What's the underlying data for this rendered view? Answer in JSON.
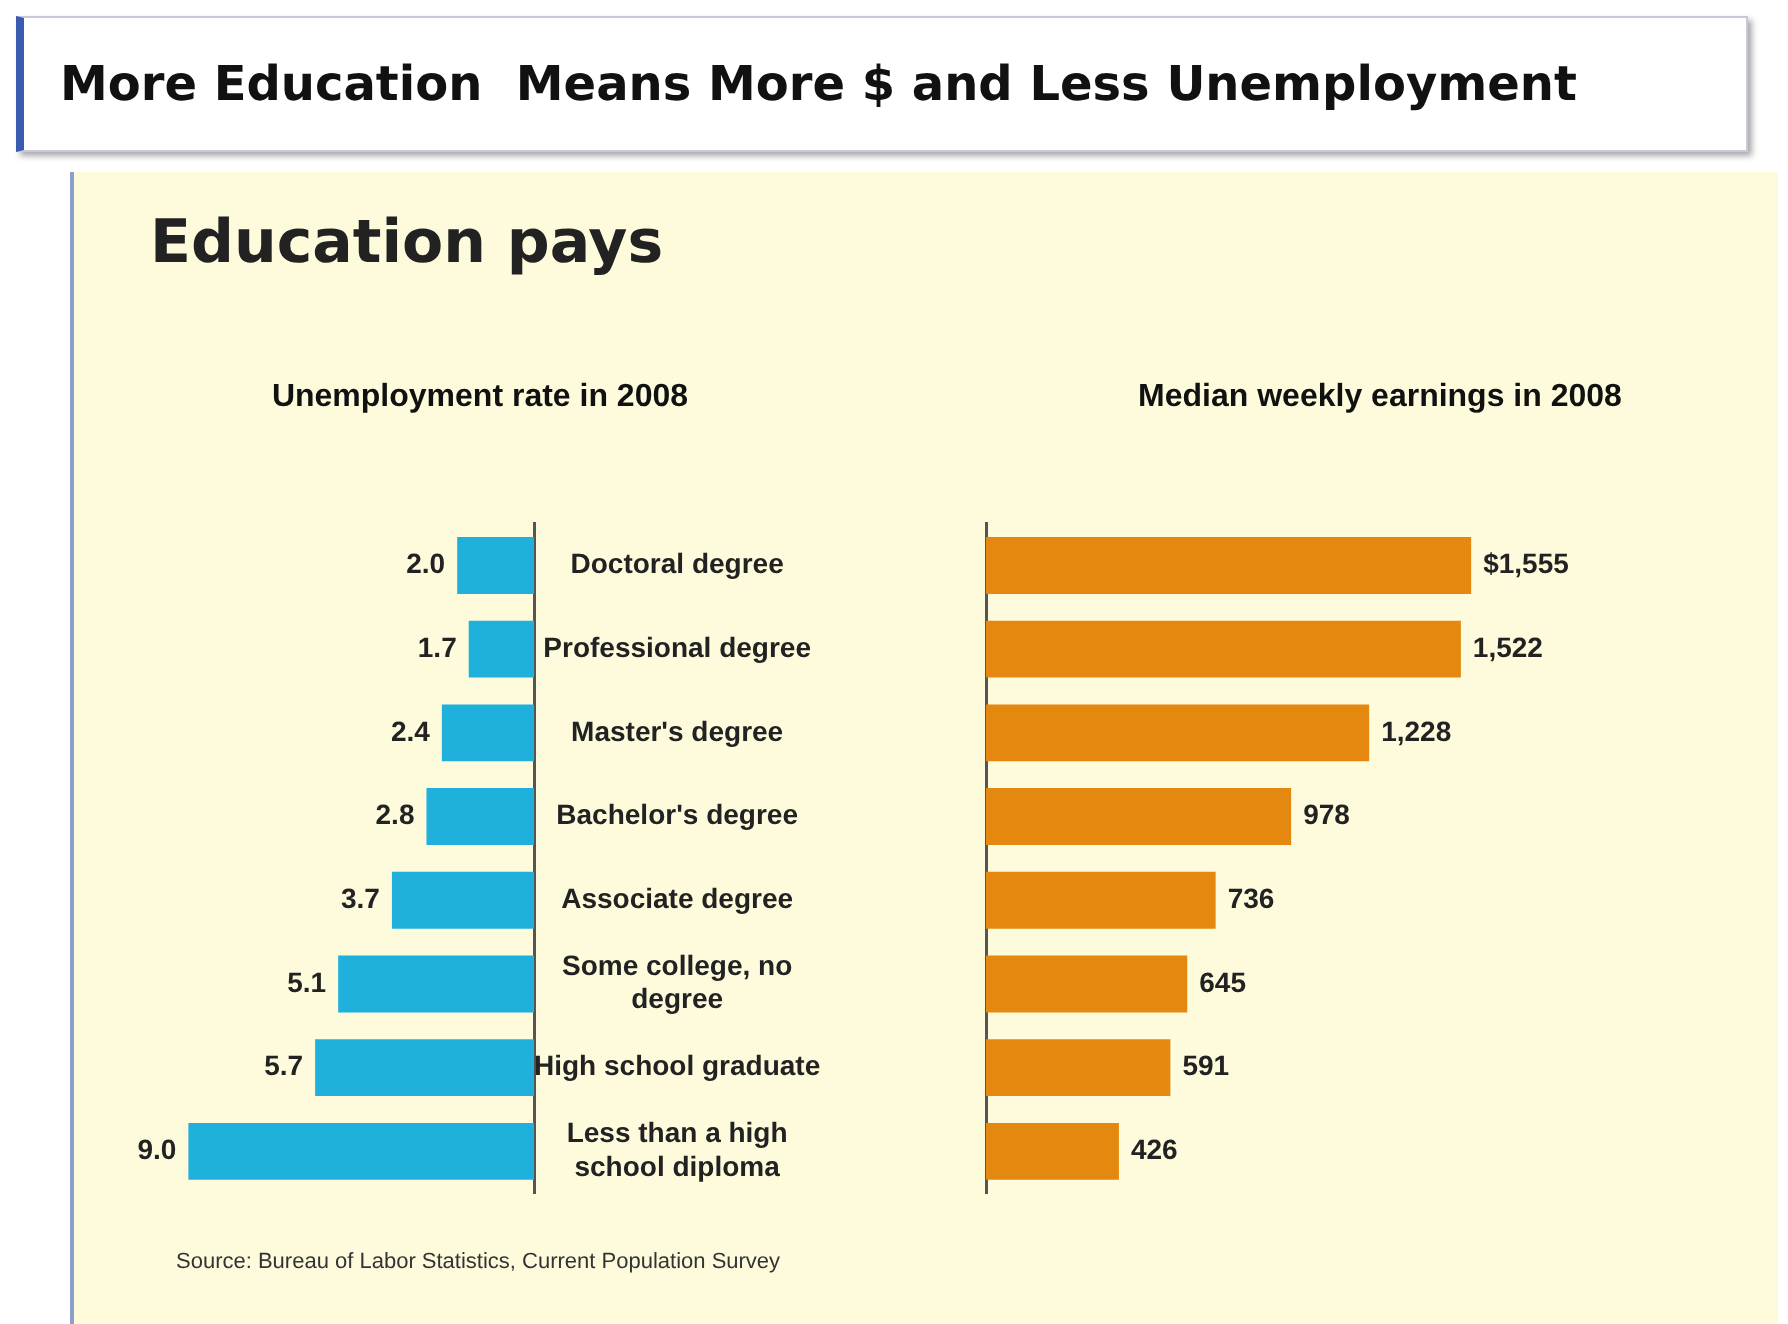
{
  "chart_data": [
    {
      "type": "other",
      "title": "More Education  Means More $ and Less Unemployment",
      "subtitle": "Education pays",
      "annotations": [
        "Source: Bureau of Labor Statistics, Current Population Survey"
      ]
    },
    {
      "type": "bar",
      "orientation": "horizontal",
      "title": "Unemployment rate in 2008",
      "categories": [
        "Doctoral degree",
        "Professional degree",
        "Master's degree",
        "Bachelor's degree",
        "Associate degree",
        "Some college, no degree",
        "High school graduate",
        "Less than a high school diploma"
      ],
      "values": [
        2.0,
        1.7,
        2.4,
        2.8,
        3.7,
        5.1,
        5.7,
        9.0
      ],
      "value_labels": [
        "2.0",
        "1.7",
        "2.4",
        "2.8",
        "3.7",
        "5.1",
        "5.7",
        "9.0"
      ],
      "color": "#1fb0dc",
      "tick_labels": "y"
    },
    {
      "type": "bar",
      "orientation": "horizontal",
      "title": "Median weekly earnings in 2008",
      "categories": [
        null,
        null,
        null,
        null,
        null,
        null,
        null,
        null
      ],
      "values": [
        1555,
        1522,
        1228,
        978,
        736,
        645,
        591,
        426
      ],
      "value_labels": [
        "$1,555",
        "1,522",
        "1,228",
        "978",
        "736",
        "645",
        "591",
        "426"
      ],
      "color": "#e4880f",
      "tick_labels": false
    }
  ]
}
